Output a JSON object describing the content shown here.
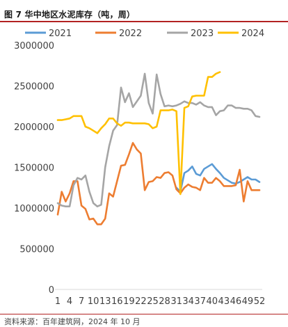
{
  "header": {
    "title": "图 7 华中地区水泥库存（吨，周）"
  },
  "footer": {
    "source": "资料来源：百年建筑网，2024 年 10 月"
  },
  "chart_data": {
    "type": "line",
    "title": "",
    "xlabel": "",
    "ylabel": "",
    "ylim": [
      0,
      3000000
    ],
    "yticks": [
      0,
      500000,
      1000000,
      1500000,
      2000000,
      2500000,
      3000000
    ],
    "ytick_labels": [
      "0",
      "500000",
      "1000000",
      "1500000",
      "2000000",
      "2500000",
      "3000000"
    ],
    "xlim": [
      1,
      52
    ],
    "xticks": [
      1,
      4,
      7,
      10,
      13,
      16,
      19,
      22,
      25,
      28,
      31,
      34,
      37,
      40,
      43,
      46,
      49,
      52
    ],
    "xtick_labels": [
      "1",
      "4",
      "7",
      "10",
      "13",
      "16",
      "19",
      "22",
      "25",
      "28",
      "31",
      "34",
      "37",
      "40",
      "43",
      "46",
      "49",
      "52"
    ],
    "grid": "none",
    "legend_position": "top",
    "series": [
      {
        "name": "2021",
        "color": "#5b9bd5",
        "x": [
          31,
          32,
          33,
          34,
          35,
          36,
          37,
          38,
          39,
          40,
          41,
          42,
          43,
          44,
          45,
          46,
          47,
          48,
          49,
          50,
          51,
          52
        ],
        "y": [
          1250000,
          1200000,
          1430000,
          1460000,
          1510000,
          1420000,
          1400000,
          1480000,
          1510000,
          1540000,
          1480000,
          1430000,
          1370000,
          1340000,
          1310000,
          1300000,
          1320000,
          1350000,
          1380000,
          1350000,
          1350000,
          1320000
        ]
      },
      {
        "name": "2022",
        "color": "#ed7d31",
        "x": [
          1,
          2,
          3,
          4,
          5,
          6,
          7,
          8,
          9,
          10,
          11,
          12,
          13,
          14,
          15,
          16,
          17,
          18,
          19,
          20,
          21,
          22,
          23,
          24,
          25,
          26,
          27,
          28,
          29,
          30,
          31,
          32,
          33,
          34,
          35,
          36,
          37,
          38,
          39,
          40,
          41,
          42,
          43,
          44,
          45,
          46,
          47,
          48,
          49,
          50,
          51,
          52
        ],
        "y": [
          920000,
          1200000,
          1080000,
          1180000,
          1330000,
          1330000,
          1030000,
          990000,
          860000,
          870000,
          800000,
          800000,
          870000,
          1180000,
          1140000,
          1330000,
          1520000,
          1530000,
          1660000,
          1800000,
          1720000,
          1670000,
          1220000,
          1320000,
          1330000,
          1380000,
          1370000,
          1430000,
          1440000,
          1400000,
          1230000,
          1180000,
          1250000,
          1290000,
          1260000,
          1250000,
          1220000,
          1370000,
          1310000,
          1310000,
          1370000,
          1330000,
          1270000,
          1270000,
          1270000,
          1280000,
          1470000,
          1080000,
          1330000,
          1220000,
          1220000,
          1220000
        ]
      },
      {
        "name": "2023",
        "color": "#a5a5a5",
        "x": [
          1,
          2,
          3,
          4,
          5,
          6,
          7,
          8,
          9,
          10,
          11,
          12,
          13,
          14,
          15,
          16,
          17,
          18,
          19,
          20,
          21,
          22,
          23,
          24,
          25,
          26,
          27,
          28,
          29,
          30,
          31,
          32,
          33,
          34,
          35,
          36,
          37,
          38,
          39,
          40,
          41,
          42,
          43,
          44,
          45,
          46,
          47,
          48,
          49,
          50,
          51,
          52
        ],
        "y": [
          1060000,
          1030000,
          1020000,
          1020000,
          1280000,
          1370000,
          1350000,
          1400000,
          1200000,
          1060000,
          1020000,
          1040000,
          1500000,
          1760000,
          1950000,
          2020000,
          2480000,
          2300000,
          2410000,
          2240000,
          2310000,
          2380000,
          2650000,
          2290000,
          2160000,
          2640000,
          2400000,
          2250000,
          2260000,
          2250000,
          2260000,
          2280000,
          2310000,
          2290000,
          2290000,
          2270000,
          2300000,
          2260000,
          2240000,
          2240000,
          2140000,
          2190000,
          2200000,
          2260000,
          2260000,
          2230000,
          2230000,
          2220000,
          2220000,
          2200000,
          2130000,
          2120000
        ]
      },
      {
        "name": "2024",
        "color": "#ffc000",
        "x": [
          1,
          2,
          3,
          4,
          5,
          6,
          7,
          8,
          9,
          10,
          11,
          12,
          13,
          14,
          15,
          16,
          17,
          18,
          19,
          20,
          21,
          22,
          23,
          24,
          25,
          26,
          27,
          28,
          29,
          30,
          31,
          32,
          33,
          34,
          35,
          36,
          37,
          38,
          39,
          40,
          41,
          42
        ],
        "y": [
          2080000,
          2080000,
          2090000,
          2100000,
          2130000,
          2130000,
          2130000,
          2000000,
          1980000,
          1950000,
          1920000,
          1980000,
          2030000,
          2100000,
          2100000,
          2040000,
          2010000,
          2050000,
          2050000,
          2040000,
          2040000,
          2040000,
          2040000,
          2030000,
          1980000,
          2000000,
          2200000,
          2200000,
          2200000,
          2210000,
          2190000,
          1170000,
          2230000,
          2250000,
          2370000,
          2380000,
          2380000,
          2380000,
          2610000,
          2610000,
          2650000,
          2670000
        ]
      }
    ]
  }
}
